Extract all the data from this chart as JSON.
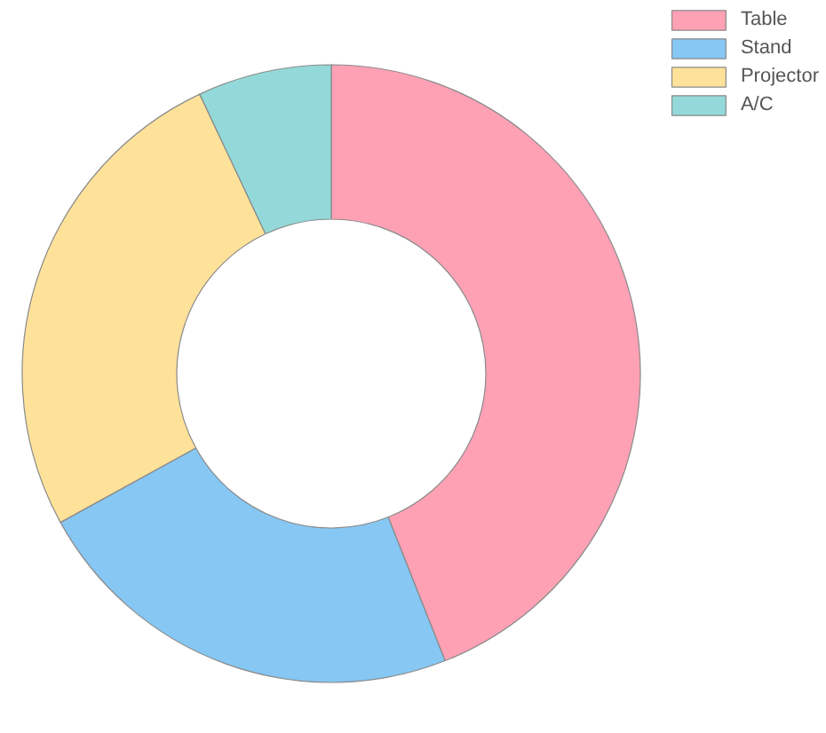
{
  "chart_data": {
    "type": "donut",
    "categories": [
      "Table",
      "Stand",
      "Projector",
      "A/C"
    ],
    "values": [
      44,
      23,
      26,
      7
    ],
    "colors": [
      "#ffa1b5",
      "#86c7f3",
      "#ffe29a",
      "#93d9d9"
    ],
    "legend": "top right"
  }
}
